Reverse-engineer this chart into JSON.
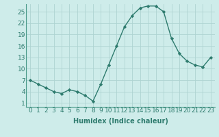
{
  "x": [
    0,
    1,
    2,
    3,
    4,
    5,
    6,
    7,
    8,
    9,
    10,
    11,
    12,
    13,
    14,
    15,
    16,
    17,
    18,
    19,
    20,
    21,
    22,
    23
  ],
  "y": [
    7,
    6,
    5,
    4,
    3.5,
    4.5,
    4,
    3,
    1.5,
    6,
    11,
    16,
    21,
    24,
    26,
    26.5,
    26.5,
    25,
    18,
    14,
    12,
    11,
    10.5,
    13
  ],
  "line_color": "#2e7b6e",
  "marker": "D",
  "marker_size": 2.2,
  "background_color": "#ceecea",
  "grid_color": "#aed4d2",
  "xlabel": "Humidex (Indice chaleur)",
  "xlim": [
    -0.5,
    23.5
  ],
  "ylim": [
    0,
    27
  ],
  "yticks": [
    1,
    4,
    7,
    10,
    13,
    16,
    19,
    22,
    25
  ],
  "xtick_labels": [
    "0",
    "1",
    "2",
    "3",
    "4",
    "5",
    "6",
    "7",
    "8",
    "9",
    "10",
    "11",
    "12",
    "13",
    "14",
    "15",
    "16",
    "17",
    "18",
    "19",
    "20",
    "21",
    "22",
    "23"
  ],
  "xlabel_fontsize": 7,
  "tick_fontsize": 6.5,
  "line_width": 1.0
}
